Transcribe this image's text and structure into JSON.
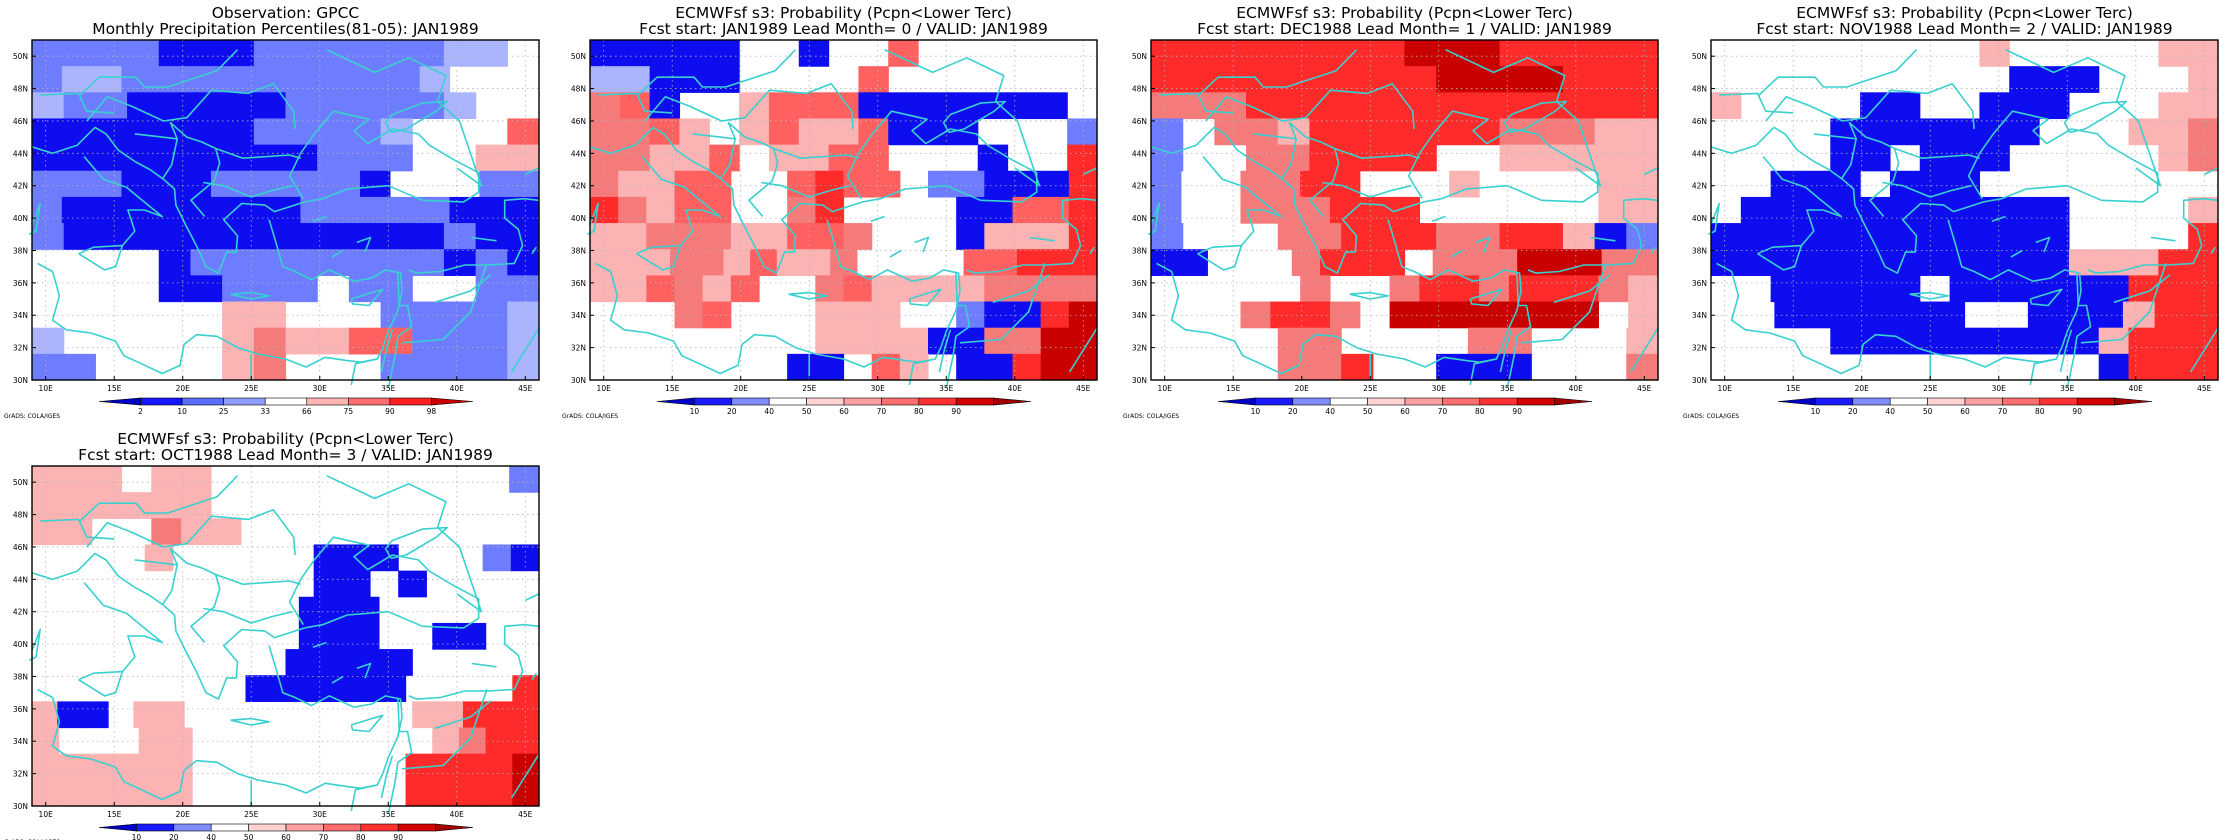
{
  "panels": [
    {
      "title1": "Observation: GPCC",
      "title2": "Monthly Precipitation Percentiles(81-05): JAN1989",
      "scale": "obs",
      "grid": [
        "aaaabbbaaaaaaccw",
        "accaaaaaaaaaacwww",
        "caabbbbbaaaaacww",
        "bbbbbbbaaaacwwwd",
        "bbbbbbbbbaaawwee",
        "aaabbbaaaaabwwwaa",
        "abbbbbbbbaaaaabbb",
        "abbbbbbbbbbbbabb",
        "wwwwbaaaaaaaabab",
        "wwwwbbaaawaawwaa",
        "wwwwwweewwwaaaac",
        "cwwwwwefeeddaaac",
        "aawwwwefwwwaaaac"
      ],
      "colorbar": {
        "type": "obs",
        "labels": [
          "2",
          "10",
          "25",
          "33",
          "66",
          "75",
          "90",
          "98"
        ]
      }
    },
    {
      "title1": "ECMWFsf s3: Probability (Pcpn<Lower Terc)",
      "title2": "Fcst start: JAN1989   Lead Month= 0 / VALID: JAN1989",
      "scale": "prob",
      "grid": [
        "bbbbbwwbwwdwwwwww",
        "ccbbbwwwwdwwwwwww",
        "fdbwwedddbbbbbbbw",
        "ffdewedeedbbbwwwa",
        "ffeedweeddwwwbwwg",
        "feeddwwdgddwaabbbg",
        "gfeddwwfgwwwwbbddg",
        "eefffeeddfwwwbeeeg",
        "eeeffedeefwwwwddggg",
        "eedfedwwfdeeeeffff",
        "wwwfdwwweeewwabbgh",
        "wwwwwwwweeeebbffhh",
        "wwwwwwwbbwdewbbghh"
      ],
      "colorbar": {
        "type": "prob",
        "labels": [
          "10",
          "20",
          "40",
          "50",
          "60",
          "70",
          "80",
          "90"
        ]
      }
    },
    {
      "title1": "ECMWFsf s3: Probability (Pcpn<Lower Terc)",
      "title2": "Fcst start: DEC1988   Lead Month= 1 / VALID: JAN1989",
      "scale": "prob",
      "grid": [
        "gggggggghhhggggg",
        "ggggggggghhhhggg",
        "fffggggggggggggg",
        "awffeggggggfffee",
        "awwffggggwweeeee",
        "awwffggwwwewwwwee",
        "awwfffgggwwwwwwee",
        "awwwffgggffggeba",
        "bbwwwfgggwfffhhhff",
        "wwwwwfwwfggfgggfe",
        "wwwfggfwhhhhhhhwe",
        "wwwwffwwwwffwwwe",
        "wwwwffgwwbbbwwwf"
      ],
      "colorbar": {
        "type": "prob",
        "labels": [
          "10",
          "20",
          "40",
          "50",
          "60",
          "70",
          "80",
          "90"
        ]
      }
    },
    {
      "title1": "ECMWFsf s3: Probability (Pcpn<Lower Terc)",
      "title2": "Fcst start: NOV1988   Lead Month= 2 / VALID: JAN1989",
      "scale": "prob",
      "grid": [
        "wwwwwwwwwewwwwwee",
        "wwwwwwwwwwbbbwwwe",
        "ewwwwbbwwbbbwwwee",
        "wwwwbbbbbbbwwweef",
        "wwwwbbwbbbwwwwwef",
        "wwbbbwbbbwwwwwwww",
        "wbbbbbbbbbbbwwwwe",
        "bbbbbbbbbbbbwwwwg",
        "bbbbbbbbbbbbeeegg",
        "wwbbbbbwbbbbbbggg",
        "wwbbbbbbwwbbbegg",
        "wwwwbbbbbbbbbeggg",
        "wwwwwwwwwwwwwbggg"
      ],
      "colorbar": {
        "type": "prob",
        "labels": [
          "10",
          "20",
          "40",
          "50",
          "60",
          "70",
          "80",
          "90"
        ]
      }
    },
    {
      "title1": "ECMWFsf s3: Probability (Pcpn<Lower Terc)",
      "title2": "Fcst start: OCT1988   Lead Month= 3 / VALID: JAN1989",
      "scale": "prob",
      "grid": [
        "eeeweewwwwwwwwwwa",
        "eeeeeewwwwwwwwwww",
        "eewwfeewwwwwwwwww",
        "wwwwewwwwwbbbwwwab",
        "wwwwwwwwwwbbwbwwww",
        "wwwwwwwwwwbbbwwwwww",
        "wwwwwwwwwwbbbwwbbww",
        "wwwwwwwwwwbbbbbwwwww",
        "wwwwwwwwbbbbbbwwwwg",
        "ebbweewwwwwwwwweeggg",
        "ewwweewwwwwwwwwefgg",
        "eeeeeewwwwwwwwggggh",
        "eeeeeewwwwwwwwggggh"
      ],
      "colorbar": {
        "type": "prob",
        "labels": [
          "10",
          "20",
          "40",
          "50",
          "60",
          "70",
          "80",
          "90"
        ]
      }
    }
  ],
  "lat_labels": [
    "50N",
    "48N",
    "46N",
    "44N",
    "42N",
    "40N",
    "38N",
    "36N",
    "34N",
    "32N",
    "30N"
  ],
  "lon_labels": [
    "10E",
    "15E",
    "20E",
    "25E",
    "30E",
    "35E",
    "40E",
    "45E"
  ],
  "credit": "GrADS: COLA/IGES",
  "colors": {
    "coast": "#39d0d0",
    "a": "#6e7dff",
    "b": "#0d0df0",
    "c": "#aab4ff",
    "d": "#ff6060",
    "e": "#fbb3b3",
    "f": "#f57a7a",
    "g": "#ff2a2a",
    "h": "#c80000",
    "w": "#ffffff",
    "obs_cb": [
      "#0000c8",
      "#1414ff",
      "#5a6eff",
      "#8e9cff",
      "#ffffff",
      "#ffb4b4",
      "#ff6e6e",
      "#ff1e1e",
      "#c80000"
    ],
    "prob_cb": [
      "#0000c8",
      "#1a1aff",
      "#7f8cff",
      "#ffffff",
      "#ffd2d2",
      "#ffa0a0",
      "#ff6e6e",
      "#ff3030",
      "#d20000",
      "#a00000"
    ]
  }
}
